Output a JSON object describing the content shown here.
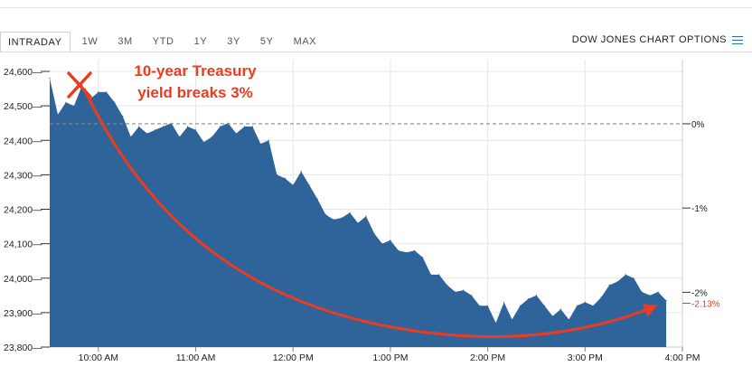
{
  "tabs": [
    "INTRADAY",
    "1W",
    "3M",
    "YTD",
    "1Y",
    "3Y",
    "5Y",
    "MAX"
  ],
  "active_tab": "INTRADAY",
  "chart_options_label": "DOW JONES CHART OPTIONS",
  "colors": {
    "area_fill": "#2e6499",
    "annotation": "#ee3a1e",
    "grid": "#e6e6e6",
    "baseline": "#888888",
    "negative_pct": "#e23b2e"
  },
  "chart_data": {
    "type": "area",
    "title": "",
    "xlabel": "",
    "ylabel": "",
    "ylim": [
      23800,
      24620
    ],
    "y_ticks": [
      "24,600",
      "24,500",
      "24,400",
      "24,300",
      "24,200",
      "24,100",
      "24,000",
      "23,900",
      "23,800"
    ],
    "x_ticks": [
      "10:00 AM",
      "11:00 AM",
      "12:00 PM",
      "1:00 PM",
      "2:00 PM",
      "3:00 PM",
      "4:00 PM"
    ],
    "right_axis_ticks": [
      "0%",
      "-1%",
      "-2%"
    ],
    "last_change_label": "-2.13%",
    "previous_close": 24448,
    "x": [
      "9:30",
      "9:35",
      "9:40",
      "9:45",
      "9:50",
      "9:55",
      "10:00",
      "10:05",
      "10:10",
      "10:15",
      "10:20",
      "10:25",
      "10:30",
      "10:35",
      "10:40",
      "10:45",
      "10:50",
      "10:55",
      "11:00",
      "11:05",
      "11:10",
      "11:15",
      "11:20",
      "11:25",
      "11:30",
      "11:35",
      "11:40",
      "11:45",
      "11:50",
      "11:55",
      "12:00",
      "12:05",
      "12:10",
      "12:15",
      "12:20",
      "12:25",
      "12:30",
      "12:35",
      "12:40",
      "12:45",
      "12:50",
      "12:55",
      "13:00",
      "13:05",
      "13:10",
      "13:15",
      "13:20",
      "13:25",
      "13:30",
      "13:35",
      "13:40",
      "13:45",
      "13:50",
      "13:55",
      "14:00",
      "14:05",
      "14:10",
      "14:15",
      "14:20",
      "14:25",
      "14:30",
      "14:35",
      "14:40",
      "14:45",
      "14:50",
      "14:55",
      "15:00",
      "15:05",
      "15:10",
      "15:15",
      "15:20",
      "15:25",
      "15:30",
      "15:35",
      "15:40",
      "15:45",
      "15:50"
    ],
    "values": [
      24580,
      24475,
      24510,
      24500,
      24560,
      24520,
      24540,
      24540,
      24510,
      24470,
      24410,
      24440,
      24420,
      24430,
      24440,
      24450,
      24410,
      24440,
      24430,
      24395,
      24410,
      24440,
      24450,
      24420,
      24440,
      24440,
      24390,
      24400,
      24300,
      24290,
      24270,
      24310,
      24270,
      24230,
      24185,
      24170,
      24175,
      24190,
      24160,
      24180,
      24130,
      24100,
      24110,
      24080,
      24075,
      24080,
      24060,
      24010,
      24010,
      23980,
      23960,
      23965,
      23950,
      23920,
      23920,
      23870,
      23930,
      23880,
      23920,
      23940,
      23950,
      23920,
      23890,
      23910,
      23880,
      23920,
      23930,
      23920,
      23945,
      23980,
      23990,
      24010,
      24000,
      23960,
      23950,
      23960,
      23935
    ]
  },
  "annotation": {
    "line1": "10-year Treasury",
    "line2": "yield breaks 3%"
  }
}
